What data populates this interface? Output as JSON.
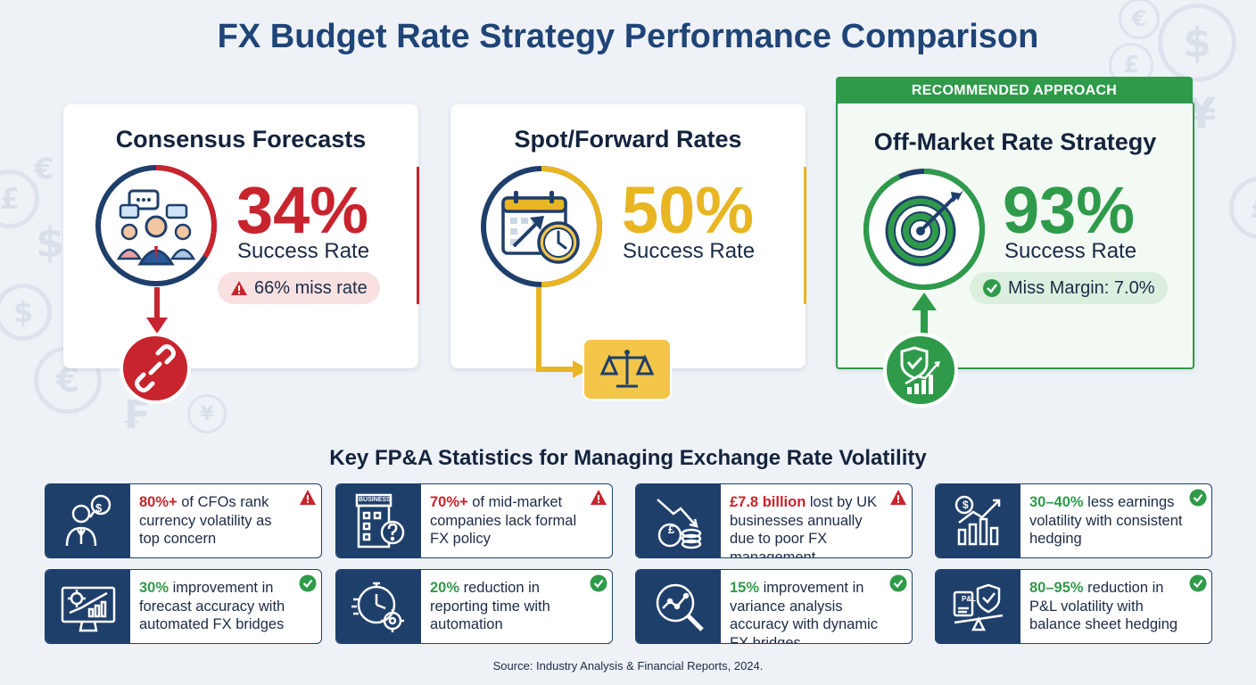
{
  "title": "FX Budget Rate Strategy Performance Comparison",
  "colors": {
    "red": "#c8242d",
    "yellow": "#e8b523",
    "green": "#2f9b4a",
    "navy": "#1f3f6b"
  },
  "cards": [
    {
      "title": "Consensus Forecasts",
      "value": "34%",
      "value_label": "Success Rate",
      "success_rate": 0.34,
      "pill_text": "66% miss rate",
      "icon": "people-chat-icon",
      "bottom_icon": "broken-link-icon"
    },
    {
      "title": "Spot/Forward Rates",
      "value": "50%",
      "value_label": "Success Rate",
      "success_rate": 0.5,
      "icon": "calendar-clock-icon",
      "bottom_icon": "balance-scale-icon"
    },
    {
      "title": "Off-Market Rate Strategy",
      "value": "93%",
      "value_label": "Success Rate",
      "success_rate": 0.93,
      "pill_text": "Miss Margin: 7.0%",
      "icon": "target-arrow-icon",
      "bottom_icon": "shield-chart-icon",
      "banner": "RECOMMENDED APPROACH"
    }
  ],
  "stats_title": "Key FP&A Statistics for Managing Exchange Rate Volatility",
  "stats": [
    {
      "highlight": "80%+",
      "rest": " of CFOs rank currency volatility as top concern",
      "tone": "red",
      "icon": "cfo-dollar-icon"
    },
    {
      "highlight": "70%+",
      "rest": " of mid-market companies lack formal FX policy",
      "tone": "red",
      "icon": "business-question-icon",
      "icon_label": "BUSINESS"
    },
    {
      "highlight": "£7.8 billion",
      "rest": " lost by UK businesses annually due to poor FX management",
      "tone": "red",
      "icon": "pound-down-icon"
    },
    {
      "highlight": "30–40%",
      "rest": " less earnings volatility with consistent hedging",
      "tone": "green",
      "icon": "dollar-growth-icon"
    },
    {
      "highlight": "30%",
      "rest": " improvement in forecast accuracy with automated FX bridges",
      "tone": "green",
      "icon": "monitor-gear-icon"
    },
    {
      "highlight": "20%",
      "rest": " reduction in reporting time with automation",
      "tone": "green",
      "icon": "stopwatch-gear-icon"
    },
    {
      "highlight": "15%",
      "rest": " improvement in variance analysis accuracy with dynamic FX bridges",
      "tone": "green",
      "icon": "magnifier-chart-icon"
    },
    {
      "highlight": "80–95%",
      "rest": " reduction in P&L volatility with balance sheet hedging",
      "tone": "green",
      "icon": "pl-shield-scale-icon",
      "icon_label": "P&L"
    }
  ],
  "source": "Source: Industry Analysis & Financial Reports, 2024."
}
